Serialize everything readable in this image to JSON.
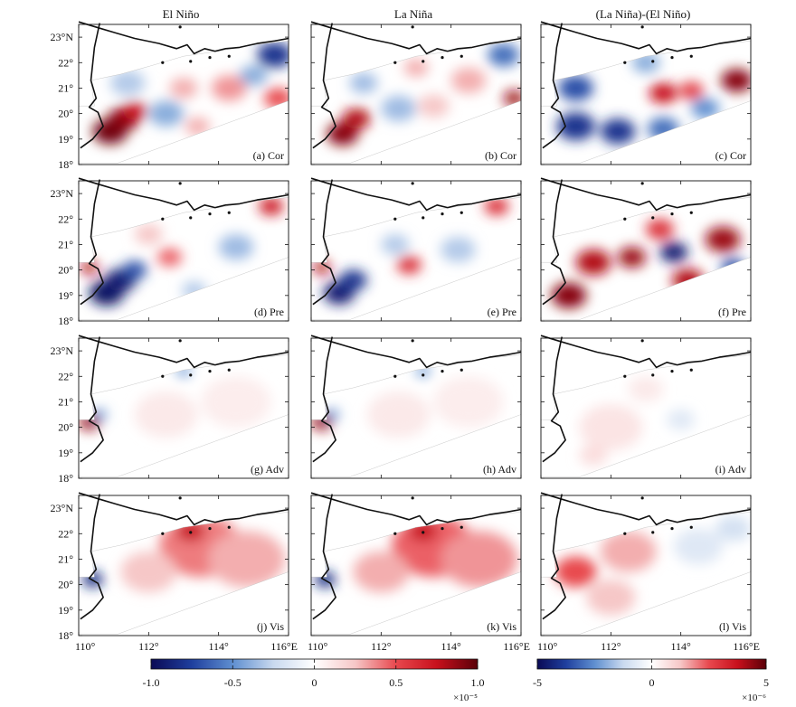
{
  "chart_data": {
    "type": "heatmap",
    "figure": "Momentum balance terms, El Niño vs La Niña composites, northern South China Sea shelf",
    "column_titles": [
      "El Niño",
      "La Niña",
      "(La Niña)-(El Niño)"
    ],
    "row_terms": [
      "Cor",
      "Pre",
      "Adv",
      "Vis"
    ],
    "panel_labels": [
      [
        "(a) Cor",
        "(b) Cor",
        "(c) Cor"
      ],
      [
        "(d) Pre",
        "(e) Pre",
        "(f) Pre"
      ],
      [
        "(g) Adv",
        "(h) Adv",
        "(i) Adv"
      ],
      [
        "(j) Vis",
        "(k) Vis",
        "(l) Vis"
      ]
    ],
    "x_axis": {
      "range": [
        110,
        116
      ],
      "tick_values": [
        110,
        112,
        114,
        116
      ],
      "tick_labels": [
        "110°",
        "112°",
        "114°",
        "116°E"
      ]
    },
    "y_axis": {
      "range": [
        18,
        23.5
      ],
      "tick_values": [
        18,
        19,
        20,
        21,
        22,
        23
      ],
      "tick_labels": [
        "18°",
        "19°",
        "20°",
        "21°",
        "22°",
        "23°N"
      ]
    },
    "colorbars": [
      {
        "applies_to": "El Niño, La Niña columns",
        "range": [
          -1.0,
          1.0
        ],
        "tick_values": [
          -1.0,
          -0.5,
          0,
          0.5,
          1.0
        ],
        "tick_labels": [
          "-1.0",
          "-0.5",
          "0",
          "0.5",
          "1.0"
        ],
        "scale_label": "×10⁻⁵"
      },
      {
        "applies_to": "(La Niña)-(El Niño) column",
        "range": [
          -5,
          5
        ],
        "tick_values": [
          -5,
          0,
          5
        ],
        "tick_labels": [
          "-5",
          "0",
          "5"
        ],
        "scale_label": "×10⁻⁶"
      }
    ],
    "colormap": [
      "#0a0a55",
      "#1f3f9e",
      "#5f8fd0",
      "#c9d9ef",
      "#ffffff",
      "#f6c7c7",
      "#e8484e",
      "#c8101c",
      "#5a0008"
    ],
    "coast_color": "#111111",
    "field_features": [
      [
        [
          {
            "x": 110.9,
            "y": 19.3,
            "v": 0.95,
            "r": 0.5
          },
          {
            "x": 111.3,
            "y": 19.8,
            "v": 0.9,
            "r": 0.45
          },
          {
            "x": 111.6,
            "y": 20.1,
            "v": 0.75,
            "r": 0.35
          },
          {
            "x": 111.4,
            "y": 21.2,
            "v": -0.3,
            "r": 0.5
          },
          {
            "x": 112.5,
            "y": 20.0,
            "v": -0.4,
            "r": 0.5
          },
          {
            "x": 113.0,
            "y": 21.0,
            "v": 0.3,
            "r": 0.4
          },
          {
            "x": 114.3,
            "y": 21.0,
            "v": 0.35,
            "r": 0.5
          },
          {
            "x": 115.6,
            "y": 22.3,
            "v": -0.8,
            "r": 0.5
          },
          {
            "x": 115.7,
            "y": 20.6,
            "v": 0.5,
            "r": 0.4
          },
          {
            "x": 113.4,
            "y": 19.5,
            "v": 0.3,
            "r": 0.35
          },
          {
            "x": 115.0,
            "y": 21.5,
            "v": -0.4,
            "r": 0.4
          }
        ],
        [
          {
            "x": 110.9,
            "y": 19.2,
            "v": 0.9,
            "r": 0.45
          },
          {
            "x": 111.3,
            "y": 19.8,
            "v": 0.8,
            "r": 0.4
          },
          {
            "x": 112.5,
            "y": 20.2,
            "v": -0.35,
            "r": 0.5
          },
          {
            "x": 113.5,
            "y": 20.3,
            "v": 0.25,
            "r": 0.45
          },
          {
            "x": 114.5,
            "y": 21.3,
            "v": 0.3,
            "r": 0.5
          },
          {
            "x": 115.5,
            "y": 22.3,
            "v": -0.6,
            "r": 0.45
          },
          {
            "x": 115.8,
            "y": 20.6,
            "v": 0.85,
            "r": 0.3
          },
          {
            "x": 111.5,
            "y": 21.2,
            "v": -0.35,
            "r": 0.4
          },
          {
            "x": 113.0,
            "y": 21.8,
            "v": 0.3,
            "r": 0.35
          }
        ],
        [
          {
            "x": 111.0,
            "y": 19.5,
            "v": -0.8,
            "r": 0.55
          },
          {
            "x": 111.0,
            "y": 21.0,
            "v": -0.7,
            "r": 0.5
          },
          {
            "x": 112.2,
            "y": 19.3,
            "v": -0.8,
            "r": 0.5
          },
          {
            "x": 113.5,
            "y": 20.8,
            "v": 0.75,
            "r": 0.4
          },
          {
            "x": 114.3,
            "y": 20.9,
            "v": 0.55,
            "r": 0.35
          },
          {
            "x": 115.6,
            "y": 21.3,
            "v": 0.9,
            "r": 0.45
          },
          {
            "x": 113.5,
            "y": 19.4,
            "v": -0.6,
            "r": 0.45
          },
          {
            "x": 114.7,
            "y": 20.2,
            "v": -0.5,
            "r": 0.4
          },
          {
            "x": 113.0,
            "y": 22.0,
            "v": -0.4,
            "r": 0.4
          }
        ]
      ],
      [
        [
          {
            "x": 110.8,
            "y": 19.1,
            "v": -0.95,
            "r": 0.5
          },
          {
            "x": 111.2,
            "y": 19.6,
            "v": -0.9,
            "r": 0.45
          },
          {
            "x": 111.6,
            "y": 20.0,
            "v": -0.7,
            "r": 0.35
          },
          {
            "x": 110.3,
            "y": 20.1,
            "v": 0.8,
            "r": 0.25
          },
          {
            "x": 112.6,
            "y": 20.5,
            "v": 0.45,
            "r": 0.35
          },
          {
            "x": 114.5,
            "y": 20.9,
            "v": -0.35,
            "r": 0.5
          },
          {
            "x": 115.5,
            "y": 22.5,
            "v": 0.7,
            "r": 0.35
          },
          {
            "x": 113.3,
            "y": 19.2,
            "v": -0.3,
            "r": 0.35
          },
          {
            "x": 112.0,
            "y": 21.4,
            "v": 0.25,
            "r": 0.4
          }
        ],
        [
          {
            "x": 110.8,
            "y": 19.1,
            "v": -0.9,
            "r": 0.45
          },
          {
            "x": 111.2,
            "y": 19.6,
            "v": -0.8,
            "r": 0.4
          },
          {
            "x": 110.3,
            "y": 20.1,
            "v": 0.8,
            "r": 0.25
          },
          {
            "x": 112.8,
            "y": 20.2,
            "v": 0.6,
            "r": 0.35
          },
          {
            "x": 114.2,
            "y": 20.8,
            "v": -0.3,
            "r": 0.5
          },
          {
            "x": 115.3,
            "y": 22.5,
            "v": 0.6,
            "r": 0.35
          },
          {
            "x": 112.4,
            "y": 21.0,
            "v": -0.3,
            "r": 0.4
          }
        ],
        [
          {
            "x": 110.8,
            "y": 19.0,
            "v": 0.9,
            "r": 0.5
          },
          {
            "x": 111.5,
            "y": 20.3,
            "v": 0.8,
            "r": 0.5
          },
          {
            "x": 112.6,
            "y": 20.5,
            "v": 0.85,
            "r": 0.4
          },
          {
            "x": 113.8,
            "y": 20.7,
            "v": -0.9,
            "r": 0.4
          },
          {
            "x": 115.2,
            "y": 21.2,
            "v": 0.85,
            "r": 0.5
          },
          {
            "x": 114.2,
            "y": 19.6,
            "v": 0.8,
            "r": 0.45
          },
          {
            "x": 113.4,
            "y": 21.6,
            "v": 0.6,
            "r": 0.4
          },
          {
            "x": 115.5,
            "y": 20.1,
            "v": -0.7,
            "r": 0.35
          }
        ]
      ],
      [
        [
          {
            "x": 110.3,
            "y": 20.2,
            "v": 0.85,
            "r": 0.3
          },
          {
            "x": 110.6,
            "y": 20.5,
            "v": -0.5,
            "r": 0.2
          },
          {
            "x": 113.0,
            "y": 22.2,
            "v": -0.5,
            "r": 0.2
          },
          {
            "x": 112.5,
            "y": 20.5,
            "v": 0.1,
            "r": 0.9
          },
          {
            "x": 114.5,
            "y": 21.0,
            "v": 0.08,
            "r": 1.0
          }
        ],
        [
          {
            "x": 110.3,
            "y": 20.2,
            "v": 0.85,
            "r": 0.3
          },
          {
            "x": 110.6,
            "y": 20.5,
            "v": -0.5,
            "r": 0.2
          },
          {
            "x": 113.2,
            "y": 22.2,
            "v": -0.5,
            "r": 0.2
          },
          {
            "x": 112.5,
            "y": 20.5,
            "v": 0.1,
            "r": 0.9
          },
          {
            "x": 114.5,
            "y": 21.0,
            "v": 0.08,
            "r": 1.0
          }
        ],
        [
          {
            "x": 112.0,
            "y": 20.0,
            "v": 0.12,
            "r": 0.9
          },
          {
            "x": 114.0,
            "y": 20.3,
            "v": -0.15,
            "r": 0.4
          },
          {
            "x": 111.5,
            "y": 18.9,
            "v": 0.15,
            "r": 0.4
          },
          {
            "x": 113.0,
            "y": 21.5,
            "v": 0.1,
            "r": 0.5
          }
        ]
      ],
      [
        [
          {
            "x": 110.4,
            "y": 20.2,
            "v": -0.85,
            "r": 0.3
          },
          {
            "x": 113.5,
            "y": 21.5,
            "v": 0.4,
            "r": 1.2
          },
          {
            "x": 114.8,
            "y": 21.0,
            "v": 0.3,
            "r": 1.1
          },
          {
            "x": 113.2,
            "y": 22.1,
            "v": 0.75,
            "r": 0.4
          },
          {
            "x": 112.0,
            "y": 20.5,
            "v": 0.25,
            "r": 0.8
          }
        ],
        [
          {
            "x": 110.4,
            "y": 20.2,
            "v": -0.85,
            "r": 0.3
          },
          {
            "x": 113.5,
            "y": 21.5,
            "v": 0.45,
            "r": 1.2
          },
          {
            "x": 114.8,
            "y": 21.0,
            "v": 0.35,
            "r": 1.1
          },
          {
            "x": 113.2,
            "y": 22.1,
            "v": 0.75,
            "r": 0.4
          },
          {
            "x": 112.0,
            "y": 20.5,
            "v": 0.3,
            "r": 0.8
          }
        ],
        [
          {
            "x": 111.0,
            "y": 20.5,
            "v": 0.5,
            "r": 0.6
          },
          {
            "x": 112.5,
            "y": 21.3,
            "v": 0.3,
            "r": 0.8
          },
          {
            "x": 114.5,
            "y": 21.5,
            "v": -0.15,
            "r": 0.7
          },
          {
            "x": 115.5,
            "y": 22.2,
            "v": -0.2,
            "r": 0.5
          },
          {
            "x": 112.0,
            "y": 19.5,
            "v": 0.25,
            "r": 0.7
          }
        ]
      ]
    ]
  }
}
